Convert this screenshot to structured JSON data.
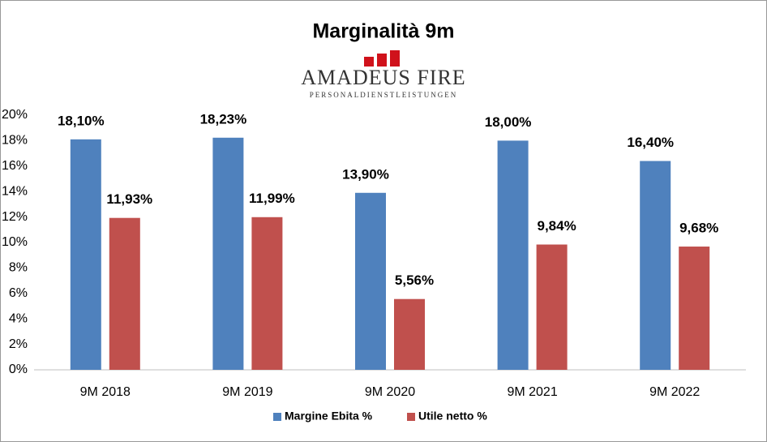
{
  "chart_data": {
    "type": "bar",
    "title": "Marginalità 9m",
    "logo_text": "Amadeus FiRe",
    "logo_subtext": "PERSONALDIENSTLEISTUNGEN",
    "categories": [
      "9M 2018",
      "9M 2019",
      "9M 2020",
      "9M 2021",
      "9M 2022"
    ],
    "series": [
      {
        "name": "Margine Ebita %",
        "color": "#4f81bd",
        "label_color": "#1f3864",
        "values": [
          18.1,
          18.23,
          13.9,
          18.0,
          16.4
        ],
        "value_labels": [
          "18,10%",
          "18,23%",
          "13,90%",
          "18,00%",
          "16,40%"
        ]
      },
      {
        "name": "Utile netto %",
        "color": "#c0504d",
        "label_color": "#e00000",
        "values": [
          11.93,
          11.99,
          5.56,
          9.84,
          9.68
        ],
        "value_labels": [
          "11,93%",
          "11,99%",
          "5,56%",
          "9,84%",
          "9,68%"
        ]
      }
    ],
    "ylim": [
      0,
      20
    ],
    "yticks": [
      {
        "value": 0,
        "label": "0%"
      },
      {
        "value": 2,
        "label": "2%"
      },
      {
        "value": 4,
        "label": "4%"
      },
      {
        "value": 6,
        "label": "6%"
      },
      {
        "value": 8,
        "label": "8%"
      },
      {
        "value": 10,
        "label": "10%"
      },
      {
        "value": 12,
        "label": "12%"
      },
      {
        "value": 14,
        "label": "14%"
      },
      {
        "value": 16,
        "label": "16%"
      },
      {
        "value": 18,
        "label": "18%"
      },
      {
        "value": 20,
        "label": "20%"
      }
    ],
    "grid": false,
    "legend": "bottom"
  }
}
